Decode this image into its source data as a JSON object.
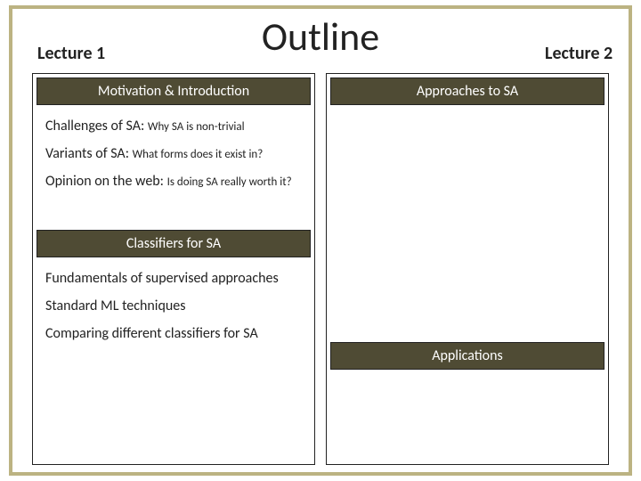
{
  "title": "Outline",
  "lecture1_label": "Lecture 1",
  "lecture2_label": "Lecture 2",
  "colors": {
    "frame_border": "#bcb382",
    "bar_bg": "#4f4b34",
    "bar_text": "#ffffff",
    "text": "#222222",
    "box_border": "#222222"
  },
  "left": {
    "section1": "Motivation & Introduction",
    "items1": [
      {
        "main": "Challenges of SA: ",
        "sub": "Why SA is non-trivial"
      },
      {
        "main": "Variants of SA: ",
        "sub": "What forms does it exist in?"
      },
      {
        "main": "Opinion on the web: ",
        "sub": "Is doing SA really worth it?"
      }
    ],
    "section2": "Classifiers for SA",
    "items2": [
      {
        "main": "Fundamentals of supervised approaches",
        "sub": ""
      },
      {
        "main": "Standard ML techniques",
        "sub": ""
      },
      {
        "main": "Comparing different classifiers for SA",
        "sub": ""
      }
    ]
  },
  "right": {
    "section1": "Approaches to SA",
    "section2": "Applications"
  }
}
